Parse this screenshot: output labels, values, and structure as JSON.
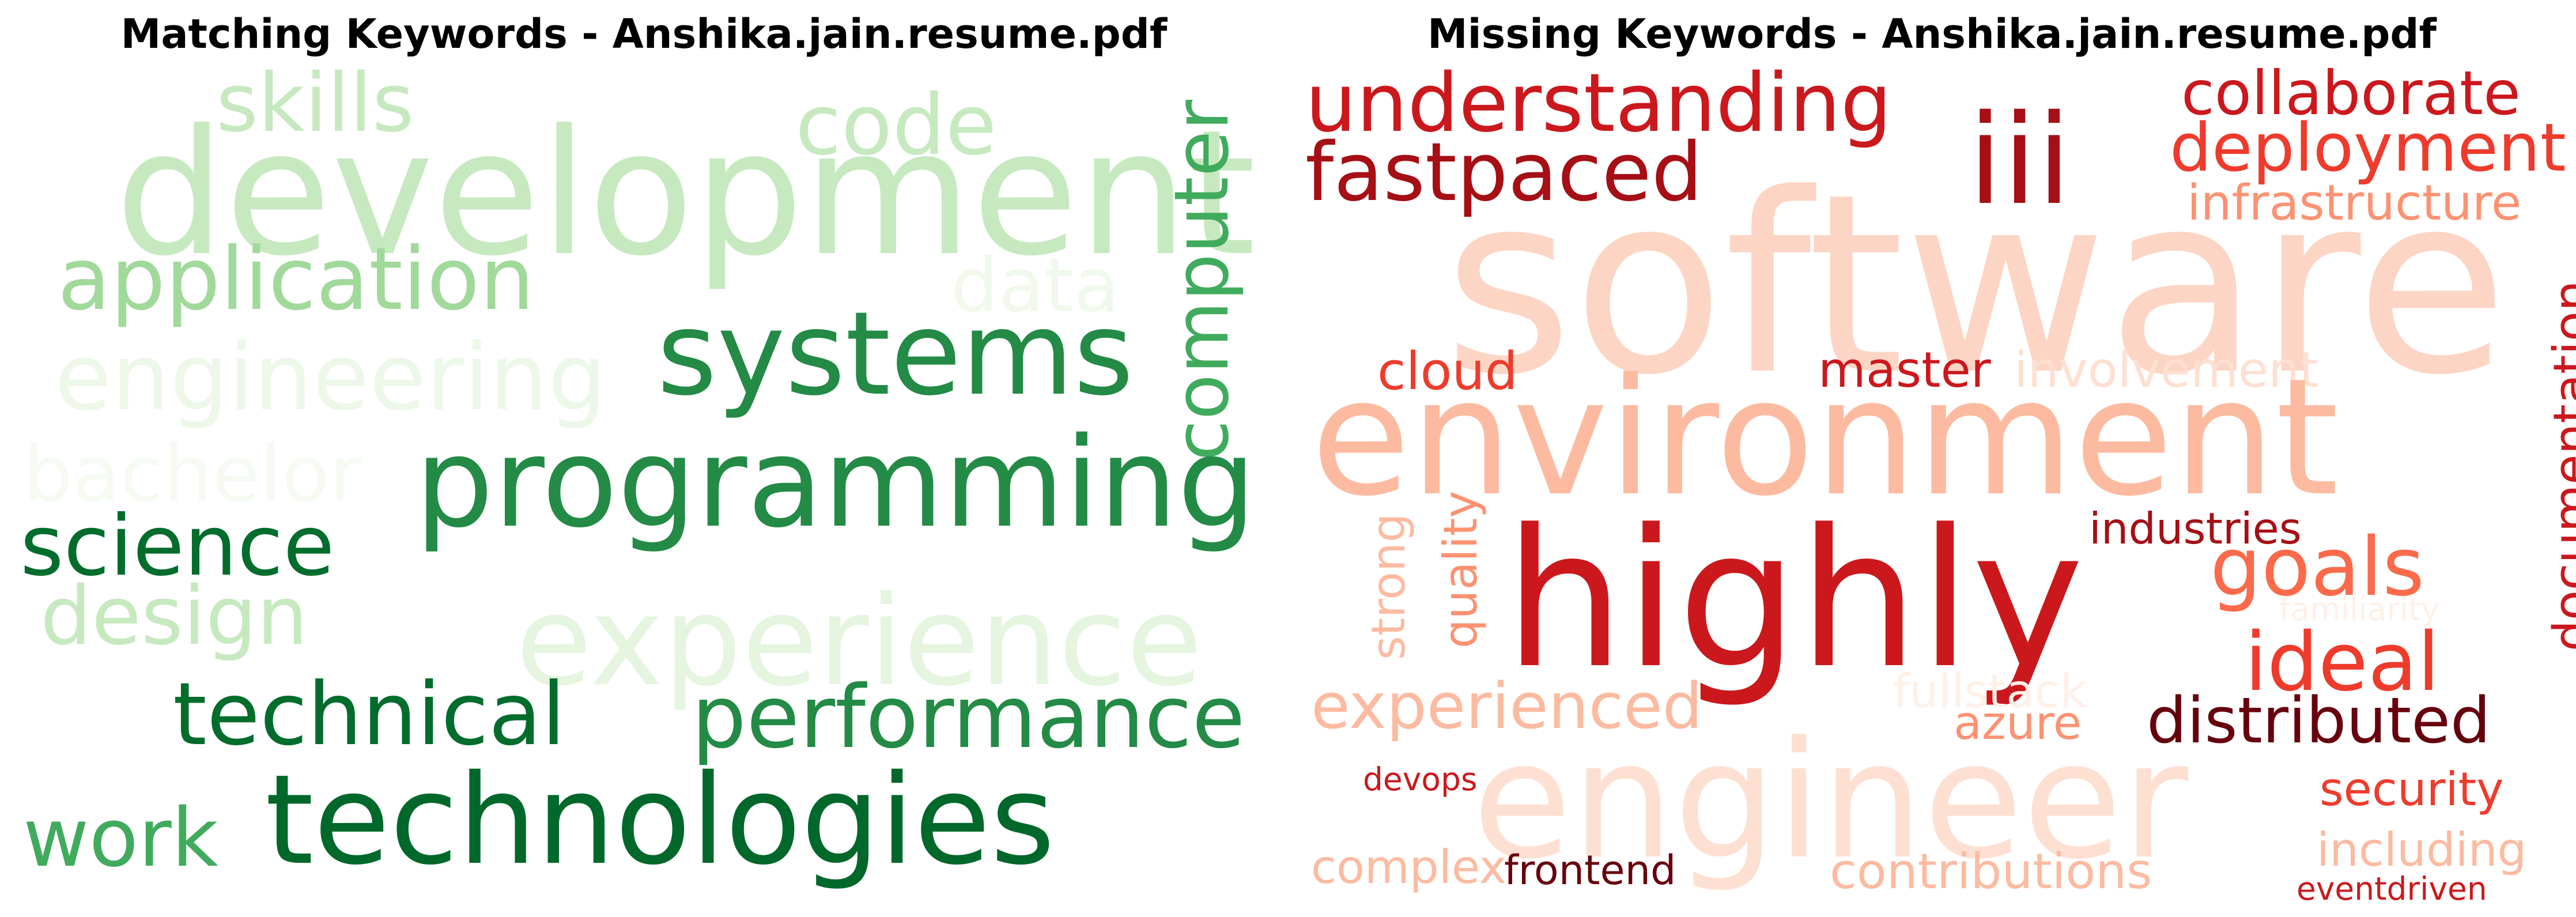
{
  "left_panel": {
    "title": "Matching Keywords - Anshika.jain.resume.pdf",
    "words": [
      {
        "text": "development",
        "color": "#c7e9c0"
      },
      {
        "text": "skills",
        "color": "#c7e9c0"
      },
      {
        "text": "code",
        "color": "#c7e9c0"
      },
      {
        "text": "application",
        "color": "#a1d99b"
      },
      {
        "text": "data",
        "color": "#f0f9ec"
      },
      {
        "text": "systems",
        "color": "#238b45"
      },
      {
        "text": "computer",
        "color": "#41ab5d"
      },
      {
        "text": "engineering",
        "color": "#edf8e9"
      },
      {
        "text": "bachelor",
        "color": "#f5fbf2"
      },
      {
        "text": "programming",
        "color": "#238b45"
      },
      {
        "text": "science",
        "color": "#006d2c"
      },
      {
        "text": "design",
        "color": "#c7e9c0"
      },
      {
        "text": "experience",
        "color": "#e5f5e0"
      },
      {
        "text": "technical",
        "color": "#006d2c"
      },
      {
        "text": "performance",
        "color": "#238b45"
      },
      {
        "text": "work",
        "color": "#41ab5d"
      },
      {
        "text": "technologies",
        "color": "#00682a"
      }
    ]
  },
  "right_panel": {
    "title": "Missing Keywords - Anshika.jain.resume.pdf",
    "words": [
      {
        "text": "understanding",
        "color": "#cb181d"
      },
      {
        "text": "iii",
        "color": "#a50f15"
      },
      {
        "text": "collaborate",
        "color": "#cb181d"
      },
      {
        "text": "fastpaced",
        "color": "#a50f15"
      },
      {
        "text": "deployment",
        "color": "#ef3b2c"
      },
      {
        "text": "infrastructure",
        "color": "#fc9272"
      },
      {
        "text": "software",
        "color": "#fdd5c4"
      },
      {
        "text": "cloud",
        "color": "#ef3b2c"
      },
      {
        "text": "master",
        "color": "#cb181d"
      },
      {
        "text": "involvement",
        "color": "#fee0d2"
      },
      {
        "text": "environment",
        "color": "#fcbba1"
      },
      {
        "text": "documentation",
        "color": "#cb181d"
      },
      {
        "text": "strong",
        "color": "#fcbba1"
      },
      {
        "text": "quality",
        "color": "#fc9272"
      },
      {
        "text": "highly",
        "color": "#cb181d"
      },
      {
        "text": "industries",
        "color": "#a50f15"
      },
      {
        "text": "goals",
        "color": "#fb6a4a"
      },
      {
        "text": "familiarity",
        "color": "#fff0e8"
      },
      {
        "text": "ideal",
        "color": "#ef3b2c"
      },
      {
        "text": "experienced",
        "color": "#fcbba1"
      },
      {
        "text": "fullstack",
        "color": "#fff0e8"
      },
      {
        "text": "azure",
        "color": "#fc9272"
      },
      {
        "text": "distributed",
        "color": "#67000d"
      },
      {
        "text": "engineer",
        "color": "#fee0d2"
      },
      {
        "text": "devops",
        "color": "#cb181d"
      },
      {
        "text": "security",
        "color": "#ef3b2c"
      },
      {
        "text": "complex",
        "color": "#fcbba1"
      },
      {
        "text": "frontend",
        "color": "#67000d"
      },
      {
        "text": "contributions",
        "color": "#fcbba1"
      },
      {
        "text": "including",
        "color": "#fcbba1"
      },
      {
        "text": "eventdriven",
        "color": "#cb181d"
      }
    ]
  }
}
